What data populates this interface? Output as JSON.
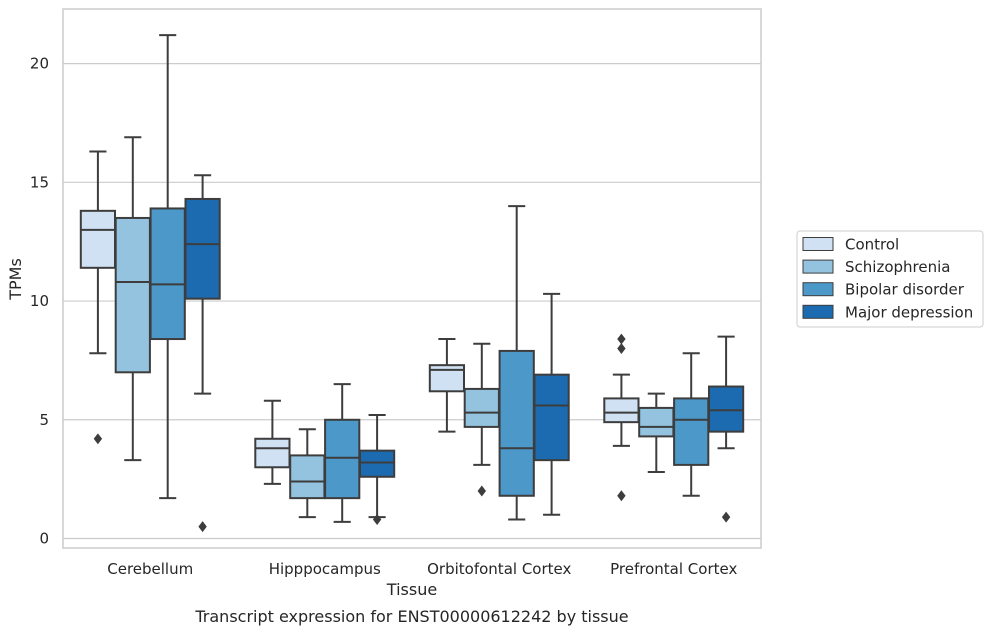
{
  "chart_data": {
    "type": "boxplot",
    "caption": "Transcript expression for ENST00000612242 by tissue",
    "xlabel": "Tissue",
    "ylabel": "TPMs",
    "ylim": [
      -0.4,
      22.3
    ],
    "yticks": [
      0,
      5,
      10,
      15,
      20
    ],
    "grid": "horizontal",
    "legend_position": "right",
    "categories": [
      "Cerebellum",
      "Hipppocampus",
      "Orbitofontal Cortex",
      "Prefrontal Cortex"
    ],
    "series": [
      {
        "name": "Control",
        "color": "#cfe1f2",
        "boxes": [
          {
            "whislo": 7.8,
            "q1": 11.4,
            "med": 13.0,
            "q3": 13.8,
            "whishi": 16.3,
            "fliers": [
              4.2
            ]
          },
          {
            "whislo": 2.3,
            "q1": 3.0,
            "med": 3.8,
            "q3": 4.2,
            "whishi": 5.8,
            "fliers": []
          },
          {
            "whislo": 4.5,
            "q1": 6.2,
            "med": 7.1,
            "q3": 7.3,
            "whishi": 8.4,
            "fliers": []
          },
          {
            "whislo": 3.9,
            "q1": 4.9,
            "med": 5.3,
            "q3": 5.9,
            "whishi": 6.9,
            "fliers": [
              8.4,
              8.0,
              1.8
            ]
          }
        ]
      },
      {
        "name": "Schizophrenia",
        "color": "#93c3df",
        "boxes": [
          {
            "whislo": 3.3,
            "q1": 7.0,
            "med": 10.8,
            "q3": 13.5,
            "whishi": 16.9,
            "fliers": []
          },
          {
            "whislo": 0.9,
            "q1": 1.7,
            "med": 2.4,
            "q3": 3.5,
            "whishi": 4.6,
            "fliers": []
          },
          {
            "whislo": 3.1,
            "q1": 4.7,
            "med": 5.3,
            "q3": 6.3,
            "whishi": 8.2,
            "fliers": [
              2.0
            ]
          },
          {
            "whislo": 2.8,
            "q1": 4.3,
            "med": 4.7,
            "q3": 5.5,
            "whishi": 6.1,
            "fliers": []
          }
        ]
      },
      {
        "name": "Bipolar disorder",
        "color": "#4b98c9",
        "boxes": [
          {
            "whislo": 1.7,
            "q1": 8.4,
            "med": 10.7,
            "q3": 13.9,
            "whishi": 21.2,
            "fliers": []
          },
          {
            "whislo": 0.7,
            "q1": 1.7,
            "med": 3.4,
            "q3": 5.0,
            "whishi": 6.5,
            "fliers": []
          },
          {
            "whislo": 0.8,
            "q1": 1.8,
            "med": 3.8,
            "q3": 7.9,
            "whishi": 14.0,
            "fliers": []
          },
          {
            "whislo": 1.8,
            "q1": 3.1,
            "med": 5.0,
            "q3": 5.9,
            "whishi": 7.8,
            "fliers": []
          }
        ]
      },
      {
        "name": "Major depression",
        "color": "#1c6aaf",
        "boxes": [
          {
            "whislo": 6.1,
            "q1": 10.1,
            "med": 12.4,
            "q3": 14.3,
            "whishi": 15.3,
            "fliers": [
              0.5
            ]
          },
          {
            "whislo": 0.9,
            "q1": 2.6,
            "med": 3.2,
            "q3": 3.7,
            "whishi": 5.2,
            "fliers": [
              0.8
            ]
          },
          {
            "whislo": 1.0,
            "q1": 3.3,
            "med": 5.6,
            "q3": 6.9,
            "whishi": 10.3,
            "fliers": []
          },
          {
            "whislo": 3.8,
            "q1": 4.5,
            "med": 5.4,
            "q3": 6.4,
            "whishi": 8.5,
            "fliers": [
              0.9
            ]
          }
        ]
      }
    ]
  }
}
